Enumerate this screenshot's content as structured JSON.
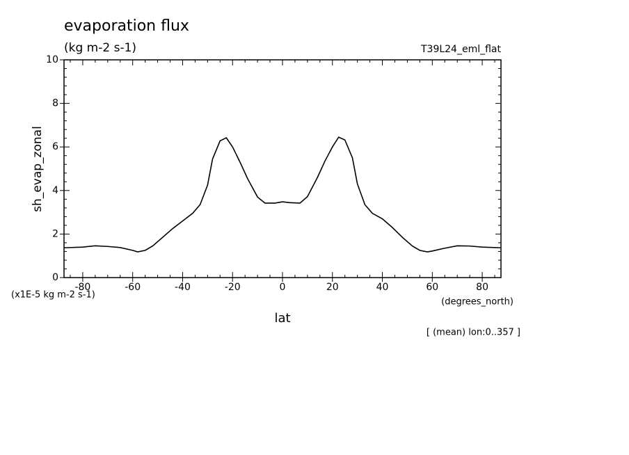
{
  "chart_data": {
    "type": "line",
    "title": "evaporation flux",
    "subtitle": "(kg m-2 s-1)",
    "run_label": "T39L24_eml_flat",
    "y_label": "sh_evap_zonal",
    "y_units": "(x1E-5 kg m-2 s-1)",
    "x_units": "(degrees_north)",
    "x_label": "lat",
    "annotation": "[ (mean) lon:0..357 ]",
    "x": [
      -87.5,
      -80,
      -75,
      -70,
      -65,
      -60,
      -58,
      -55,
      -52,
      -48,
      -44,
      -40,
      -36,
      -33,
      -30,
      -28,
      -25,
      -22.5,
      -20,
      -17,
      -14,
      -10,
      -7,
      -3,
      0,
      3,
      7,
      10,
      14,
      17,
      20,
      22.5,
      25,
      28,
      30,
      33,
      36,
      40,
      44,
      48,
      52,
      55,
      58,
      60,
      65,
      70,
      75,
      80,
      87.5
    ],
    "series": [
      {
        "name": "sh_evap_zonal",
        "color": "#000000",
        "values": [
          1.37,
          1.4,
          1.46,
          1.43,
          1.38,
          1.25,
          1.18,
          1.25,
          1.45,
          1.85,
          2.25,
          2.6,
          2.95,
          3.35,
          4.25,
          5.45,
          6.28,
          6.42,
          6.0,
          5.3,
          4.55,
          3.7,
          3.42,
          3.42,
          3.48,
          3.44,
          3.42,
          3.72,
          4.6,
          5.35,
          6.0,
          6.45,
          6.32,
          5.5,
          4.3,
          3.35,
          2.95,
          2.7,
          2.3,
          1.85,
          1.45,
          1.25,
          1.18,
          1.22,
          1.35,
          1.46,
          1.45,
          1.4,
          1.37
        ]
      }
    ],
    "xlim": [
      -87.5,
      87.5
    ],
    "xticks": [
      -80,
      -60,
      -40,
      -20,
      0,
      20,
      40,
      60,
      80
    ],
    "ylim": [
      0,
      10
    ],
    "yticks": [
      0,
      2,
      4,
      6,
      8,
      10
    ]
  }
}
